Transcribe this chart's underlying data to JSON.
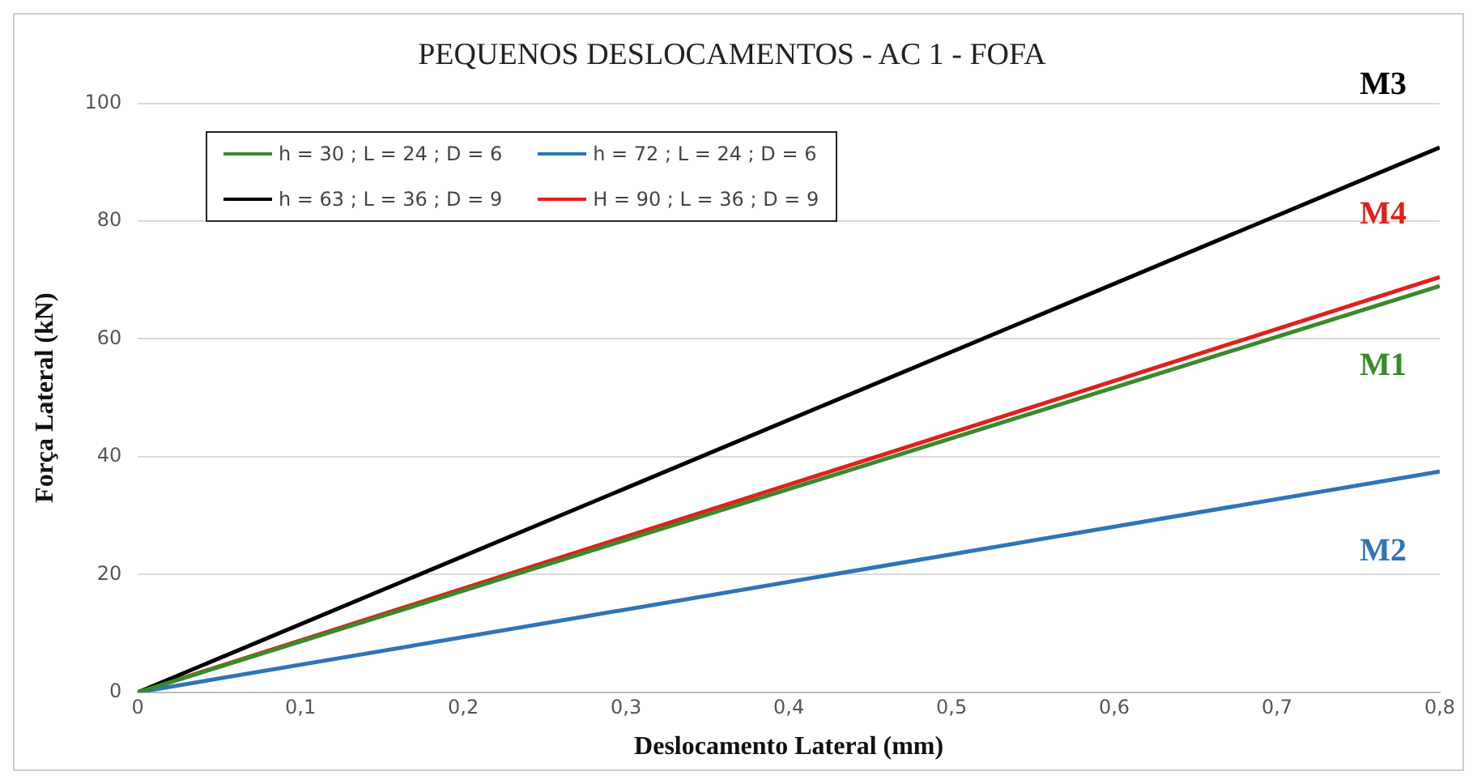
{
  "chart_data": {
    "type": "line",
    "title": "PEQUENOS DESLOCAMENTOS - AC 1 - FOFA",
    "xlabel": "Deslocamento Lateral (mm)",
    "ylabel": "Força Lateral (kN)",
    "x": [
      0,
      0.8
    ],
    "series": [
      {
        "name": "h = 30 ; L = 24 ; D = 6",
        "color": "#3a8a2a",
        "values": [
          0,
          69
        ]
      },
      {
        "name": "h = 72 ; L = 24 ; D = 6",
        "color": "#2e75b6",
        "values": [
          0,
          37.5
        ]
      },
      {
        "name": "h = 63 ; L = 36 ; D = 9",
        "color": "#000000",
        "values": [
          0,
          92.5
        ]
      },
      {
        "name": "H = 90 ; L = 36 ; D = 9",
        "color": "#e0201b",
        "values": [
          0,
          70.5
        ]
      }
    ],
    "annotations": [
      "M1",
      "M2",
      "M3",
      "M4"
    ],
    "xlim": [
      0,
      0.8
    ],
    "xticks": [
      0,
      {
        "value": 0.1,
        "label": "0,1"
      },
      {
        "value": 0.2,
        "label": "0,2"
      },
      {
        "value": 0.3,
        "label": "0,3"
      },
      {
        "value": 0.4,
        "label": "0,4"
      },
      {
        "value": 0.5,
        "label": "0,5"
      },
      {
        "value": 0.6,
        "label": "0,6"
      },
      {
        "value": 0.7,
        "label": "0,7"
      },
      {
        "value": 0.8,
        "label": "0,8"
      }
    ],
    "ylim": [
      0,
      100
    ],
    "yticks": [
      0,
      20,
      40,
      60,
      80,
      100
    ],
    "grid": "y",
    "legend": "top left",
    "marker": "none",
    "line_style": "solid"
  }
}
